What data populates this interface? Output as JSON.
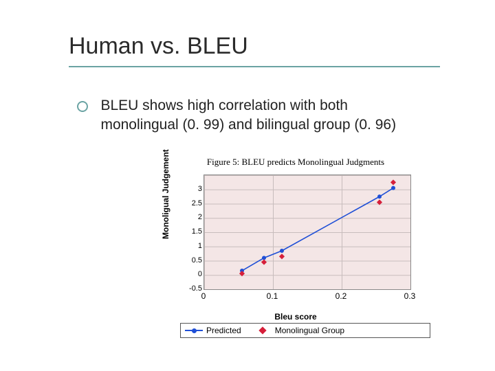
{
  "slide": {
    "title": "Human vs. BLEU",
    "bullet": "BLEU shows high correlation with both monolingual (0. 99) and bilingual group (0. 96)",
    "accent_color": "#6aa3a3"
  },
  "chart": {
    "type": "scatter-with-line",
    "caption": "Figure 5: BLEU predicts Monolingual Judgments",
    "xlabel": "Bleu score",
    "ylabel": "Monoligual Judgement",
    "background_color": "#f4e6e6",
    "grid_color": "#c7bcbc",
    "axis_color": "#888888",
    "label_fontsize": 12,
    "tick_fontsize": 11,
    "xlim": [
      0,
      0.3
    ],
    "ylim": [
      -0.5,
      3.5
    ],
    "xticks": [
      0,
      0.1,
      0.2,
      0.3
    ],
    "yticks": [
      -0.5,
      0,
      0.5,
      1,
      1.5,
      2,
      2.5,
      3
    ],
    "series": {
      "predicted": {
        "label": "Predicted",
        "type": "line+marker",
        "line_color": "#1f4fd6",
        "line_width": 1.6,
        "marker_shape": "circle",
        "marker_color": "#1f4fd6",
        "marker_size": 6,
        "x": [
          0.055,
          0.087,
          0.113,
          0.255,
          0.275
        ],
        "y": [
          0.15,
          0.6,
          0.85,
          2.75,
          3.05
        ]
      },
      "mono": {
        "label": "Monolingual Group",
        "type": "marker",
        "marker_shape": "diamond",
        "marker_color": "#d61f3a",
        "marker_size": 6.5,
        "x": [
          0.055,
          0.087,
          0.113,
          0.255,
          0.275
        ],
        "y": [
          0.05,
          0.45,
          0.65,
          2.55,
          3.25
        ]
      }
    },
    "legend_border": "#555555"
  }
}
